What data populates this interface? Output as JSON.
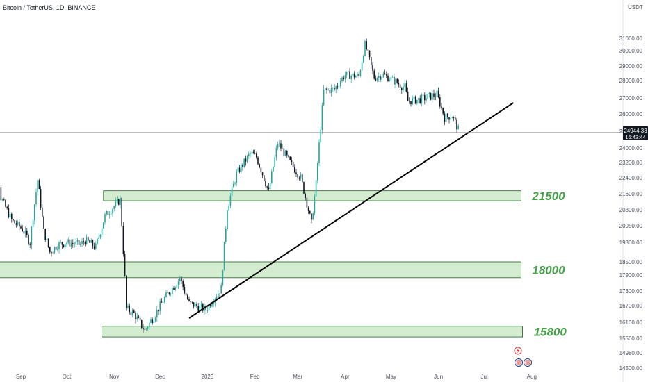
{
  "header": {
    "title": "Bitcoin / TetherUS, 1D, BINANCE",
    "currency": "USDT"
  },
  "price_tag": {
    "price": "24944.33",
    "countdown": "16:43:44"
  },
  "colors": {
    "up": "#26a69a",
    "down": "#131722",
    "zone_fill": "#d4edd0",
    "zone_border": "#1b5e20",
    "zone_label": "#43a047",
    "trendline": "#000000",
    "price_tag_bg": "#131722"
  },
  "chart_data": {
    "type": "candlestick",
    "y_ticks": [
      "31000.00",
      "30000.00",
      "29000.00",
      "28000.00",
      "27000.00",
      "26000.00",
      "25000.00",
      "24000.00",
      "23200.00",
      "22400.00",
      "21600.00",
      "20800.00",
      "20050.00",
      "19300.00",
      "18500.00",
      "17900.00",
      "17300.00",
      "16700.00",
      "16100.00",
      "15500.00",
      "14980.00",
      "14500.00"
    ],
    "x_ticks": [
      "Sep",
      "Oct",
      "Nov",
      "Dec",
      "2023",
      "Feb",
      "Mar",
      "Apr",
      "May",
      "Jun",
      "Jul",
      "Aug"
    ],
    "current_price": 24944.33,
    "zones": [
      {
        "label": "21500",
        "low": 21250,
        "high": 21750,
        "from": "2022-10-25",
        "to": "2023-07-25"
      },
      {
        "label": "18000",
        "low": 17800,
        "high": 18500,
        "from": "2022-08-10",
        "to": "2023-07-25"
      },
      {
        "label": "15800",
        "low": 15550,
        "high": 15950,
        "from": "2022-10-24",
        "to": "2023-07-26"
      }
    ],
    "trendline": {
      "start": [
        "2022-12-20",
        16250
      ],
      "end": [
        "2023-07-20",
        26700
      ]
    },
    "daily_close_path": [
      [
        "2022-08-10",
        23200
      ],
      [
        "2022-08-15",
        24200
      ],
      [
        "2022-08-19",
        21400
      ],
      [
        "2022-08-26",
        20300
      ],
      [
        "2022-09-02",
        19900
      ],
      [
        "2022-09-07",
        19300
      ],
      [
        "2022-09-12",
        22300
      ],
      [
        "2022-09-16",
        19800
      ],
      [
        "2022-09-20",
        18900
      ],
      [
        "2022-09-25",
        19200
      ],
      [
        "2022-10-01",
        19300
      ],
      [
        "2022-10-10",
        19200
      ],
      [
        "2022-10-13",
        19400
      ],
      [
        "2022-10-20",
        19100
      ],
      [
        "2022-10-26",
        20500
      ],
      [
        "2022-11-05",
        21300
      ],
      [
        "2022-11-09",
        16600
      ],
      [
        "2022-11-14",
        16400
      ],
      [
        "2022-11-21",
        15800
      ],
      [
        "2022-11-28",
        16400
      ],
      [
        "2022-12-05",
        17100
      ],
      [
        "2022-12-14",
        17800
      ],
      [
        "2022-12-20",
        16800
      ],
      [
        "2022-12-31",
        16550
      ],
      [
        "2023-01-10",
        17400
      ],
      [
        "2023-01-14",
        20900
      ],
      [
        "2023-01-20",
        22600
      ],
      [
        "2023-01-29",
        23700
      ],
      [
        "2023-02-02",
        23500
      ],
      [
        "2023-02-10",
        21700
      ],
      [
        "2023-02-16",
        24300
      ],
      [
        "2023-02-24",
        23200
      ],
      [
        "2023-03-03",
        22400
      ],
      [
        "2023-03-10",
        20150
      ],
      [
        "2023-03-13",
        22100
      ],
      [
        "2023-03-18",
        27400
      ],
      [
        "2023-03-25",
        27500
      ],
      [
        "2023-04-01",
        28400
      ],
      [
        "2023-04-10",
        28300
      ],
      [
        "2023-04-14",
        30500
      ],
      [
        "2023-04-20",
        28200
      ],
      [
        "2023-04-26",
        28400
      ],
      [
        "2023-05-01",
        28100
      ],
      [
        "2023-05-10",
        27600
      ],
      [
        "2023-05-12",
        26800
      ],
      [
        "2023-05-20",
        26900
      ],
      [
        "2023-05-31",
        27200
      ],
      [
        "2023-06-05",
        25800
      ],
      [
        "2023-06-10",
        25900
      ],
      [
        "2023-06-14",
        25100
      ],
      [
        "2023-06-15",
        24944
      ]
    ]
  }
}
